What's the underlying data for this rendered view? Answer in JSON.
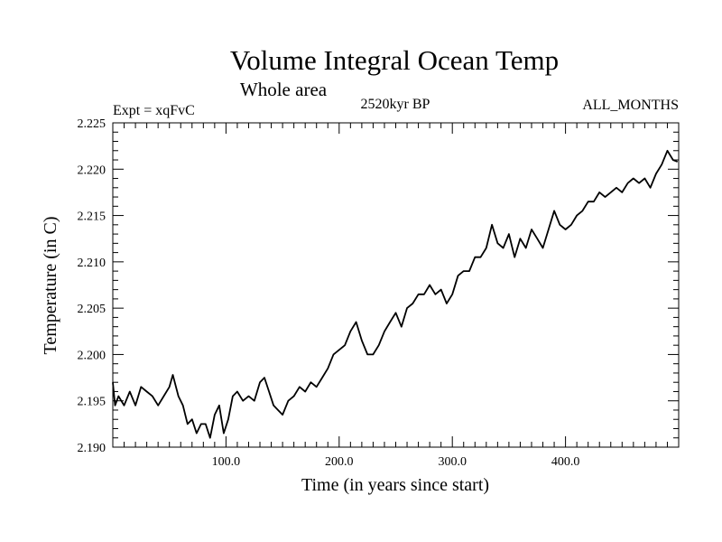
{
  "chart_data": {
    "type": "line",
    "title": "Volume Integral Ocean Temp",
    "subtitle": "Whole area",
    "experiment": "Expt = xqFvC",
    "period": "2520kyr BP",
    "months": "ALL_MONTHS",
    "xlabel": "Time (in years since start)",
    "ylabel": "Temperature (in C)",
    "xlim": [
      0,
      500
    ],
    "ylim": [
      2.19,
      2.225
    ],
    "x_ticks": [
      100,
      200,
      300,
      400
    ],
    "x_tick_labels": [
      "100.0",
      "200.0",
      "300.0",
      "400.0"
    ],
    "y_ticks": [
      2.19,
      2.195,
      2.2,
      2.205,
      2.21,
      2.215,
      2.22,
      2.225
    ],
    "y_tick_labels": [
      "2.190",
      "2.195",
      "2.200",
      "2.205",
      "2.210",
      "2.215",
      "2.220",
      "2.225"
    ],
    "grid": false,
    "series": [
      {
        "name": "Volume integral ocean temperature",
        "color": "#000000",
        "x": [
          0,
          2,
          5,
          10,
          15,
          20,
          25,
          30,
          35,
          40,
          45,
          50,
          53,
          58,
          62,
          66,
          70,
          74,
          78,
          82,
          86,
          90,
          94,
          98,
          102,
          106,
          110,
          115,
          120,
          125,
          130,
          134,
          138,
          142,
          146,
          150,
          155,
          160,
          165,
          170,
          175,
          180,
          185,
          190,
          195,
          200,
          205,
          210,
          215,
          220,
          225,
          230,
          235,
          240,
          245,
          250,
          255,
          260,
          265,
          270,
          275,
          280,
          285,
          290,
          295,
          300,
          305,
          310,
          315,
          320,
          325,
          330,
          335,
          340,
          345,
          350,
          355,
          360,
          365,
          370,
          375,
          380,
          385,
          390,
          395,
          400,
          405,
          410,
          415,
          420,
          425,
          430,
          435,
          440,
          445,
          450,
          455,
          460,
          465,
          470,
          475,
          480,
          485,
          490,
          495,
          499
        ],
        "values": [
          2.197,
          2.1945,
          2.1955,
          2.1945,
          2.196,
          2.1945,
          2.1965,
          2.196,
          2.1955,
          2.1945,
          2.1955,
          2.1965,
          2.1978,
          2.1955,
          2.1945,
          2.1925,
          2.193,
          2.1915,
          2.1925,
          2.1925,
          2.191,
          2.1935,
          2.1945,
          2.1915,
          2.193,
          2.1955,
          2.196,
          2.195,
          2.1955,
          2.195,
          2.197,
          2.1975,
          2.196,
          2.1945,
          2.194,
          2.1935,
          2.195,
          2.1955,
          2.1965,
          2.196,
          2.197,
          2.1965,
          2.1975,
          2.1985,
          2.2,
          2.2005,
          2.201,
          2.2025,
          2.2035,
          2.2015,
          2.2,
          2.2,
          2.201,
          2.2025,
          2.2035,
          2.2045,
          2.203,
          2.205,
          2.2055,
          2.2065,
          2.2065,
          2.2075,
          2.2065,
          2.207,
          2.2055,
          2.2065,
          2.2085,
          2.209,
          2.209,
          2.2105,
          2.2105,
          2.2115,
          2.214,
          2.212,
          2.2115,
          2.213,
          2.2105,
          2.2125,
          2.2115,
          2.2135,
          2.2125,
          2.2115,
          2.2135,
          2.2155,
          2.214,
          2.2135,
          2.214,
          2.215,
          2.2155,
          2.2165,
          2.2165,
          2.2175,
          2.217,
          2.2175,
          2.218,
          2.2175,
          2.2185,
          2.219,
          2.2185,
          2.219,
          2.218,
          2.2195,
          2.2205,
          2.222,
          2.221,
          2.2208
        ]
      }
    ]
  }
}
